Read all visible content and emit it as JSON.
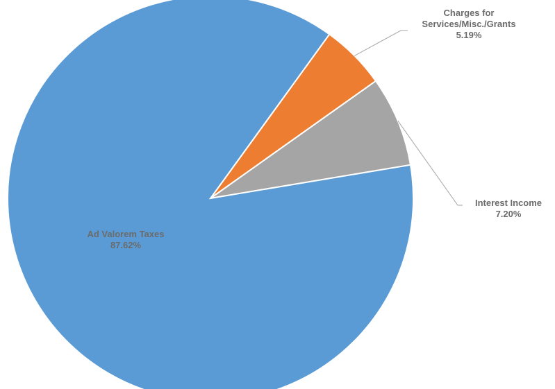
{
  "chart_data": {
    "type": "pie",
    "title": "",
    "slices": [
      {
        "label": "Ad Valorem Taxes",
        "value": 87.62,
        "value_label": "87.62%",
        "color": "#5B9BD5"
      },
      {
        "label": "Charges for Services/Misc./Grants",
        "label_lines": [
          "Charges for",
          "Services/Misc./Grants"
        ],
        "value": 5.19,
        "value_label": "5.19%",
        "color": "#ED7D31"
      },
      {
        "label": "Interest Income",
        "value": 7.2,
        "value_label": "7.20%",
        "color": "#A5A5A5"
      }
    ],
    "legend": "none",
    "label_color": "#6b6b6b",
    "leader_line_color": "#a6a6a6"
  }
}
